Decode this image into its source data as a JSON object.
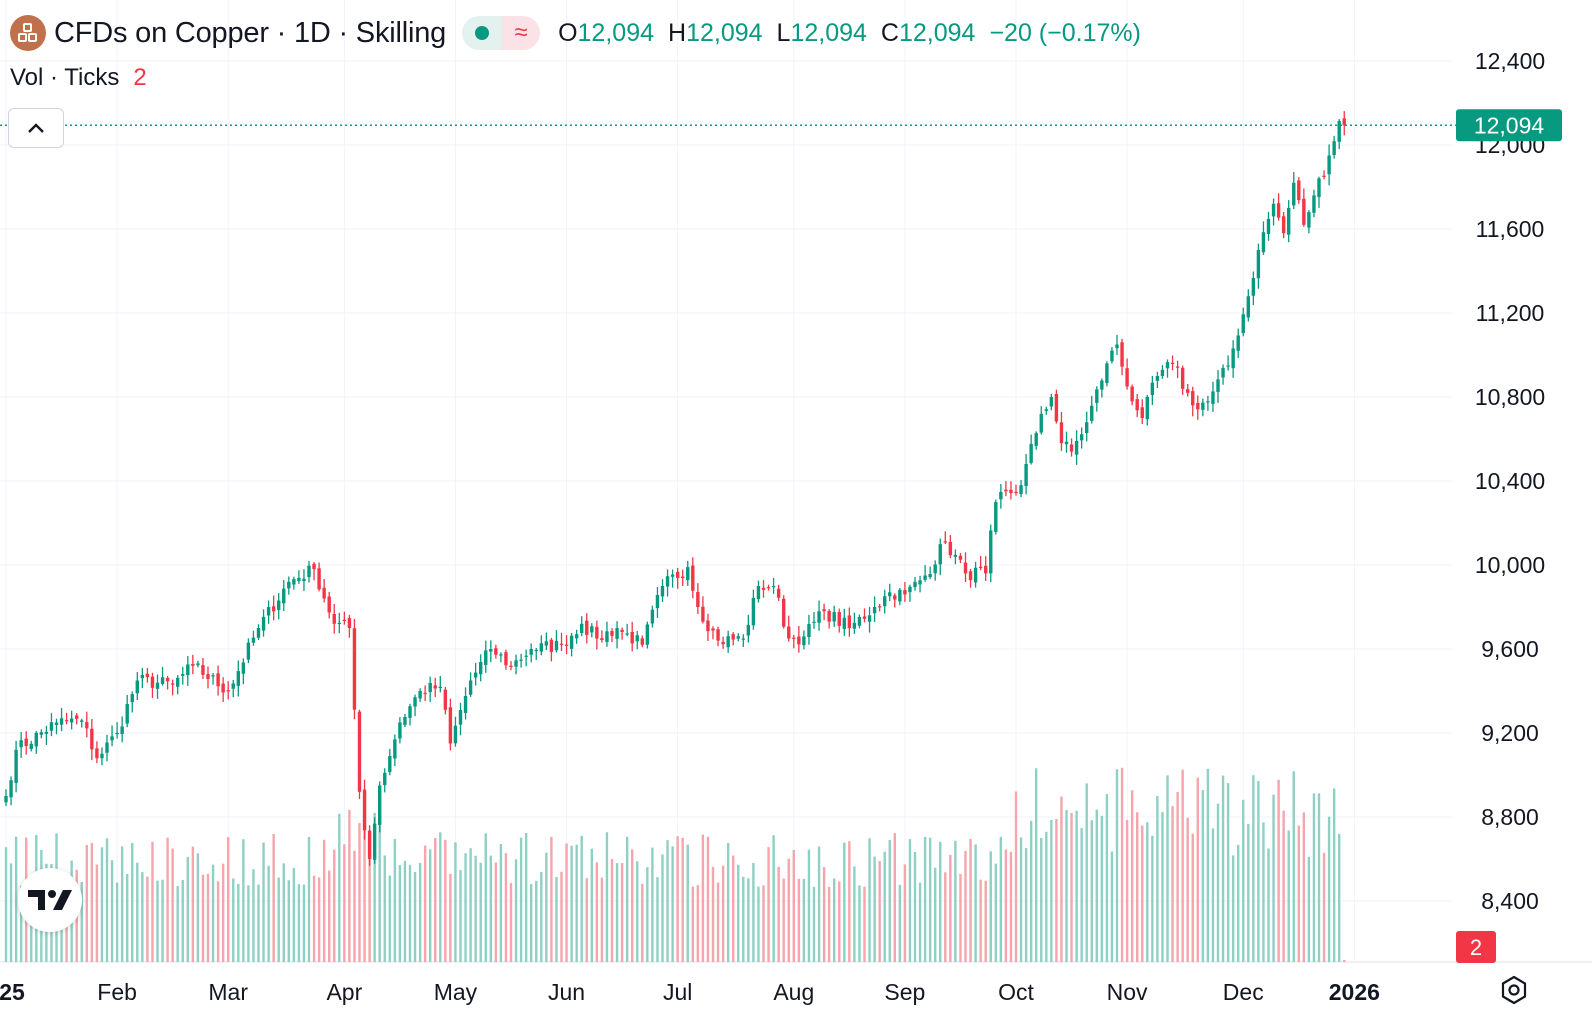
{
  "header": {
    "title": "CFDs on Copper · 1D · Skilling",
    "wave_symbol": "≈",
    "ohlc": {
      "o_label": "O",
      "o_value": "12,094",
      "h_label": "H",
      "h_value": "12,094",
      "l_label": "L",
      "l_value": "12,094",
      "c_label": "C",
      "c_value": "12,094",
      "change": "−20 (−0.17%)"
    }
  },
  "volume_legend": {
    "label": "Vol · Ticks",
    "value": "2"
  },
  "colors": {
    "up": "#089981",
    "down": "#f23645",
    "up_vol": "#8fd0c5",
    "down_vol": "#f5a5ab",
    "grid": "#f0f3fa"
  },
  "icons": {
    "collapse": "chevron-up-icon",
    "settings": "gear-icon",
    "brand": "tradingview-logo-icon"
  },
  "chart_data": {
    "type": "candlestick",
    "title": "CFDs on Copper · 1D · Skilling",
    "y_ticks": [
      8400,
      8800,
      9200,
      9600,
      10000,
      10400,
      10800,
      11200,
      11600,
      12000,
      12400
    ],
    "y_tick_labels": [
      "8,400",
      "8,800",
      "9,200",
      "9,600",
      "10,000",
      "10,400",
      "10,800",
      "11,200",
      "11,600",
      "12,000",
      "12,400"
    ],
    "ylim": [
      8080,
      12620
    ],
    "x_tick_labels": [
      "25",
      "Feb",
      "Mar",
      "Apr",
      "May",
      "Jun",
      "Jul",
      "Aug",
      "Sep",
      "Oct",
      "Nov",
      "Dec",
      "2026"
    ],
    "x_tick_days": [
      0,
      22,
      44,
      67,
      89,
      111,
      133,
      156,
      178,
      200,
      222,
      245,
      267
    ],
    "last_price": 12094,
    "last_price_label": "12,094",
    "last_volume_label": "2",
    "anchors": [
      [
        0,
        8900
      ],
      [
        2,
        9120
      ],
      [
        10,
        9250
      ],
      [
        15,
        9260
      ],
      [
        18,
        9080
      ],
      [
        22,
        9200
      ],
      [
        26,
        9450
      ],
      [
        33,
        9430
      ],
      [
        37,
        9520
      ],
      [
        44,
        9400
      ],
      [
        50,
        9700
      ],
      [
        56,
        9920
      ],
      [
        61,
        9980
      ],
      [
        65,
        9720
      ],
      [
        68,
        9700
      ],
      [
        70,
        8920
      ],
      [
        72,
        8600
      ],
      [
        74,
        8950
      ],
      [
        78,
        9250
      ],
      [
        82,
        9400
      ],
      [
        86,
        9420
      ],
      [
        88,
        9150
      ],
      [
        92,
        9450
      ],
      [
        96,
        9600
      ],
      [
        100,
        9520
      ],
      [
        104,
        9600
      ],
      [
        110,
        9620
      ],
      [
        114,
        9720
      ],
      [
        117,
        9650
      ],
      [
        121,
        9700
      ],
      [
        126,
        9620
      ],
      [
        130,
        9900
      ],
      [
        135,
        9990
      ],
      [
        137,
        9800
      ],
      [
        141,
        9640
      ],
      [
        146,
        9650
      ],
      [
        149,
        9900
      ],
      [
        152,
        9900
      ],
      [
        155,
        9650
      ],
      [
        158,
        9660
      ],
      [
        162,
        9780
      ],
      [
        167,
        9700
      ],
      [
        172,
        9800
      ],
      [
        175,
        9870
      ],
      [
        178,
        9860
      ],
      [
        182,
        9950
      ],
      [
        186,
        10110
      ],
      [
        190,
        9960
      ],
      [
        194,
        9960
      ],
      [
        196,
        10300
      ],
      [
        201,
        10380
      ],
      [
        205,
        10720
      ],
      [
        207,
        10800
      ],
      [
        209,
        10580
      ],
      [
        211,
        10540
      ],
      [
        214,
        10680
      ],
      [
        218,
        10960
      ],
      [
        220,
        11050
      ],
      [
        222,
        10850
      ],
      [
        225,
        10700
      ],
      [
        228,
        10900
      ],
      [
        231,
        10960
      ],
      [
        235,
        10760
      ],
      [
        238,
        10780
      ],
      [
        242,
        10950
      ],
      [
        246,
        11280
      ],
      [
        248,
        11500
      ],
      [
        251,
        11720
      ],
      [
        253,
        11580
      ],
      [
        255,
        11820
      ],
      [
        257,
        11620
      ],
      [
        259,
        11760
      ],
      [
        262,
        11950
      ],
      [
        264,
        12114
      ],
      [
        265,
        12094
      ]
    ]
  }
}
